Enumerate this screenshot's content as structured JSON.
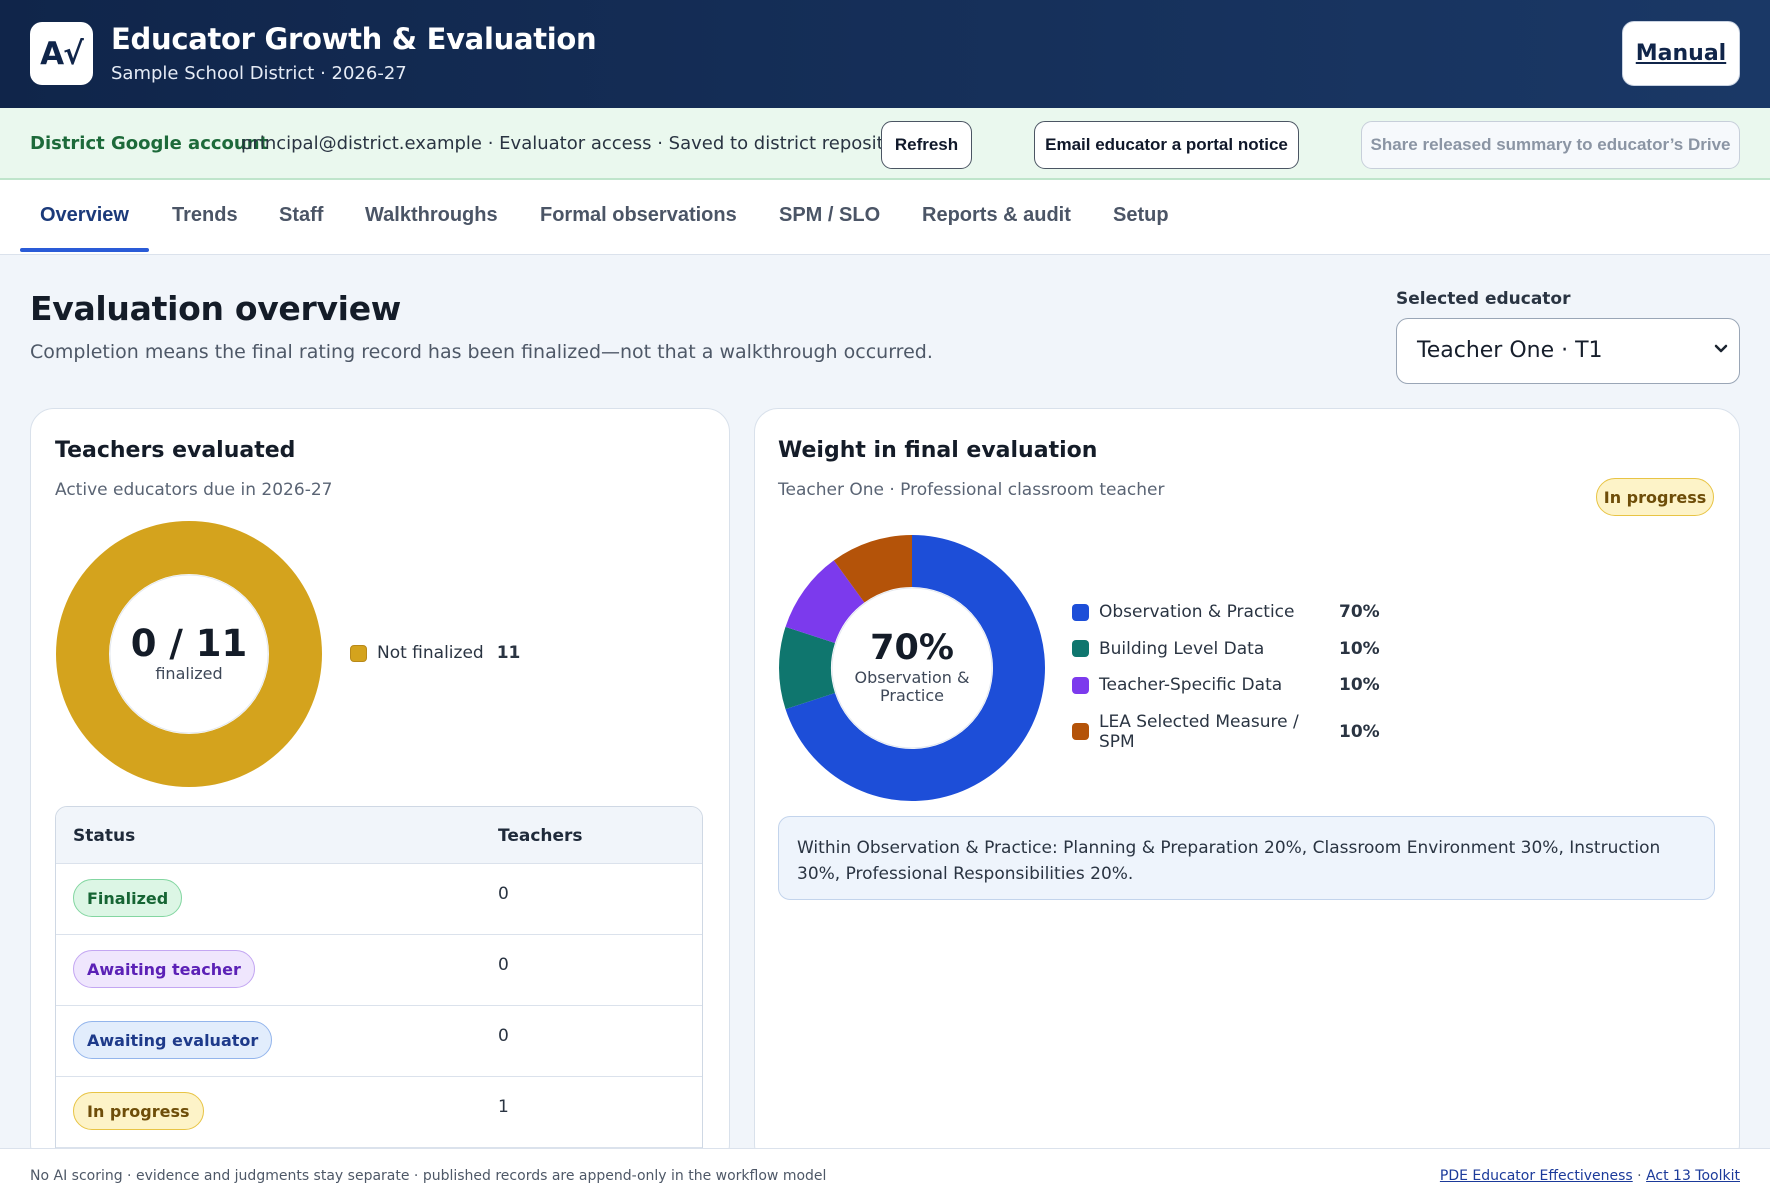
{
  "header": {
    "logo_text": "A√",
    "title": "Educator Growth & Evaluation",
    "subtitle": "Sample School District · 2026-27",
    "manual_label": "Manual"
  },
  "account": {
    "label": "District Google account",
    "info": "principal@district.example · Evaluator access · Saved to district repository",
    "refresh_label": "Refresh",
    "email_label": "Email educator a portal notice",
    "share_label": "Share released summary to educator’s Drive"
  },
  "tabs": [
    {
      "label": "Overview",
      "active": true
    },
    {
      "label": "Trends"
    },
    {
      "label": "Staff"
    },
    {
      "label": "Walkthroughs"
    },
    {
      "label": "Formal observations"
    },
    {
      "label": "SPM / SLO"
    },
    {
      "label": "Reports & audit"
    },
    {
      "label": "Setup"
    }
  ],
  "page": {
    "title": "Evaluation overview",
    "subtitle": "Completion means the final rating record has been finalized—not that a walkthrough occurred.",
    "selector_label": "Selected educator",
    "selector_value": "Teacher One · T1"
  },
  "teachers_card": {
    "title": "Teachers evaluated",
    "subtitle": "Active educators due in 2026-27",
    "center_value": "0 / 11",
    "center_label": "finalized",
    "legend": [
      {
        "label": "Not finalized",
        "value": "11",
        "color": "#d4a31d"
      }
    ],
    "table": {
      "headers": [
        "Status",
        "Teachers"
      ],
      "rows": [
        {
          "status": "Finalized",
          "count": "0",
          "bg": "#dcf6e5",
          "border": "#83d6a1",
          "fg": "#166534"
        },
        {
          "status": "Awaiting teacher",
          "count": "0",
          "bg": "#efe6fd",
          "border": "#c3a6f2",
          "fg": "#5b21b6"
        },
        {
          "status": "Awaiting evaluator",
          "count": "0",
          "bg": "#e2edfc",
          "border": "#93b5ec",
          "fg": "#1e3a8a"
        },
        {
          "status": "In progress",
          "count": "1",
          "bg": "#fdf3c8",
          "border": "#e8c445",
          "fg": "#6e4d09"
        }
      ]
    }
  },
  "weight_card": {
    "title": "Weight in final evaluation",
    "subtitle": "Teacher One · Professional classroom teacher",
    "badge": "In progress",
    "center_value": "70%",
    "center_label_line1": "Observation &",
    "center_label_line2": "Practice",
    "note": "Within Observation & Practice: Planning & Preparation 20%, Classroom Environment 30%, Instruction 30%, Professional Responsibilities 20%."
  },
  "chart_data": [
    {
      "type": "pie",
      "categories": [
        "Not finalized"
      ],
      "values": [
        11
      ],
      "colors": [
        "#d4a31d"
      ]
    },
    {
      "type": "pie",
      "categories": [
        "Observation & Practice",
        "Building Level Data",
        "Teacher-Specific Data",
        "LEA Selected Measure / SPM"
      ],
      "values": [
        70,
        10,
        10,
        10
      ],
      "labels": [
        "70%",
        "10%",
        "10%",
        "10%"
      ],
      "colors": [
        "#1d4ed8",
        "#0f766e",
        "#7c3aed",
        "#b45309"
      ]
    }
  ],
  "footer": {
    "text": "No AI scoring · evidence and judgments stay separate · published records are append-only in the workflow model",
    "link1": "PDE Educator Effectiveness",
    "separator": "·",
    "link2": "Act 13 Toolkit"
  }
}
